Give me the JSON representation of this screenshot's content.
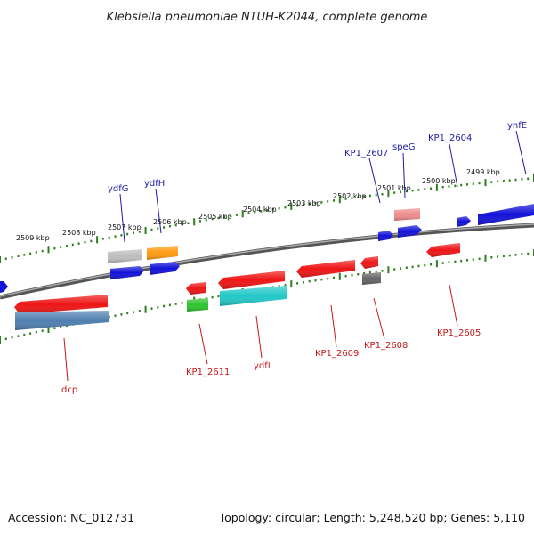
{
  "title": "Klebsiella pneumoniae NTUH-K2044, complete genome",
  "footer": {
    "accession": "Accession: NC_012731",
    "summary": "Topology: circular; Length: 5,248,520 bp; Genes: 5,110"
  },
  "scale_ticks": [
    "2509 kbp",
    "2508 kbp",
    "2507 kbp",
    "2506 kbp",
    "2505 kbp",
    "2504 kbp",
    "2503 kbp",
    "2502 kbp",
    "2501 kbp",
    "2500 kbp",
    "2499 kbp"
  ],
  "top_labels": [
    "ydfG",
    "ydfH",
    "KP1_2607",
    "speG",
    "KP1_2604",
    "ynfE"
  ],
  "bottom_labels": [
    "dcp",
    "KP1_2611",
    "ydfI",
    "KP1_2609",
    "KP1_2608",
    "KP1_2605"
  ],
  "colors": {
    "forward_label": "#1a1aa8",
    "reverse_label": "#c81818",
    "tick": "#2e7d1e",
    "backbone": "#777777"
  },
  "features": [
    {
      "name": "ydfG",
      "strand": "+",
      "color": "#bdbdbd"
    },
    {
      "name": "ydfG",
      "strand": "+",
      "color": "#1212d8"
    },
    {
      "name": "ydfH",
      "strand": "+",
      "color": "#ff9a10"
    },
    {
      "name": "ydfH",
      "strand": "+",
      "color": "#1212d8"
    },
    {
      "name": "KP1_2607",
      "strand": "+",
      "color": "#1212d8"
    },
    {
      "name": "speG",
      "strand": "+",
      "color": "#ee8c8c"
    },
    {
      "name": "speG",
      "strand": "+",
      "color": "#1212d8"
    },
    {
      "name": "KP1_2604",
      "strand": "+",
      "color": "#1212d8"
    },
    {
      "name": "ynfE",
      "strand": "+",
      "color": "#1212d8"
    },
    {
      "name": "dcp",
      "strand": "-",
      "color": "#ee1515"
    },
    {
      "name": "dcp",
      "strand": "-",
      "color": "#4f7fb0"
    },
    {
      "name": "KP1_2611",
      "strand": "-",
      "color": "#ee1515"
    },
    {
      "name": "KP1_2611",
      "strand": "-",
      "color": "#2ec42e"
    },
    {
      "name": "ydfI",
      "strand": "-",
      "color": "#ee1515"
    },
    {
      "name": "ydfI",
      "strand": "-",
      "color": "#22c8c8"
    },
    {
      "name": "KP1_2609",
      "strand": "-",
      "color": "#ee1515"
    },
    {
      "name": "KP1_2608",
      "strand": "-",
      "color": "#ee1515"
    },
    {
      "name": "KP1_2608",
      "strand": "-",
      "color": "#666666"
    },
    {
      "name": "KP1_2605",
      "strand": "-",
      "color": "#ee1515"
    }
  ]
}
